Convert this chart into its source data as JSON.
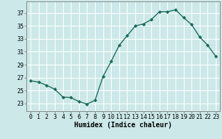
{
  "x": [
    0,
    1,
    2,
    3,
    4,
    5,
    6,
    7,
    8,
    9,
    10,
    11,
    12,
    13,
    14,
    15,
    16,
    17,
    18,
    19,
    20,
    21,
    22,
    23
  ],
  "y": [
    26.5,
    26.3,
    25.8,
    25.2,
    24.0,
    23.9,
    23.3,
    22.9,
    23.5,
    27.2,
    29.5,
    32.0,
    33.5,
    35.0,
    35.3,
    36.0,
    37.2,
    37.2,
    37.5,
    36.3,
    35.2,
    33.3,
    32.0,
    30.3
  ],
  "line_color": "#1a6b5a",
  "marker": "D",
  "marker_size": 2.2,
  "linewidth": 1.0,
  "xlabel": "Humidex (Indice chaleur)",
  "xlabel_fontsize": 7,
  "ylabel_ticks": [
    23,
    25,
    27,
    29,
    31,
    33,
    35,
    37
  ],
  "ylim": [
    21.8,
    38.8
  ],
  "xlim": [
    -0.5,
    23.5
  ],
  "xticks": [
    0,
    1,
    2,
    3,
    4,
    5,
    6,
    7,
    8,
    9,
    10,
    11,
    12,
    13,
    14,
    15,
    16,
    17,
    18,
    19,
    20,
    21,
    22,
    23
  ],
  "bg_color": "#cce8e8",
  "grid_color": "#ffffff",
  "tick_fontsize": 6.0
}
